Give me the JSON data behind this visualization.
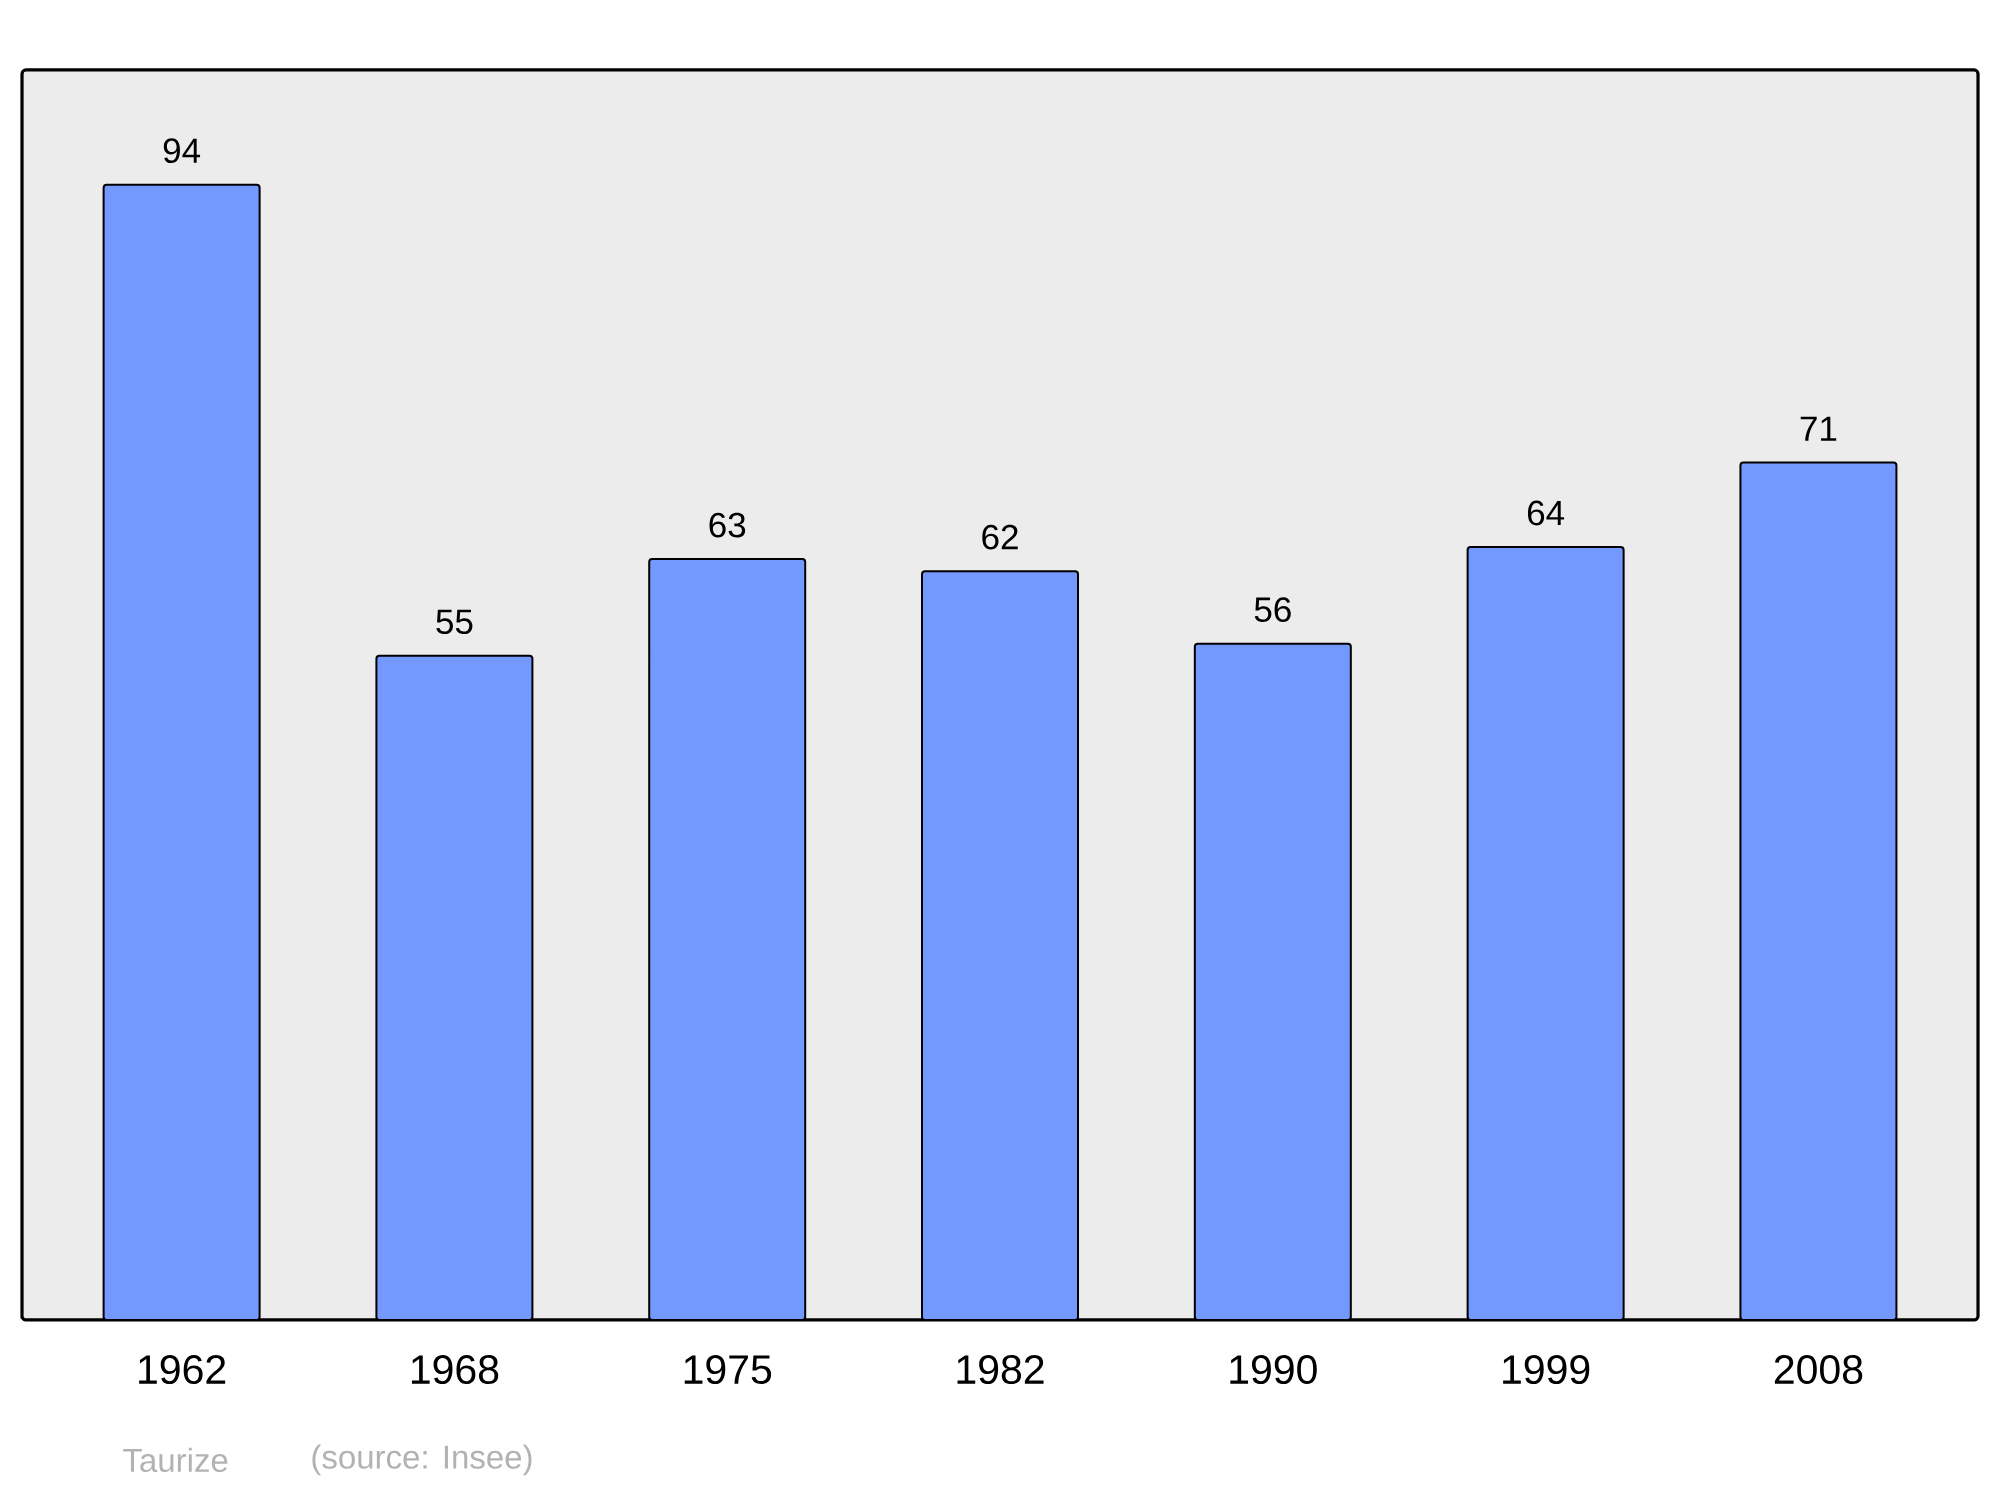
{
  "chart_data": {
    "type": "bar",
    "categories": [
      "1962",
      "1968",
      "1975",
      "1982",
      "1990",
      "1999",
      "2008"
    ],
    "values": [
      94,
      55,
      63,
      62,
      56,
      64,
      71
    ],
    "color": "#7399ff",
    "ylim": [
      0,
      103.5
    ],
    "data_labels": true,
    "tick_labels": "x",
    "annotations": [
      "Taurize",
      "(source: Insee)"
    ]
  }
}
